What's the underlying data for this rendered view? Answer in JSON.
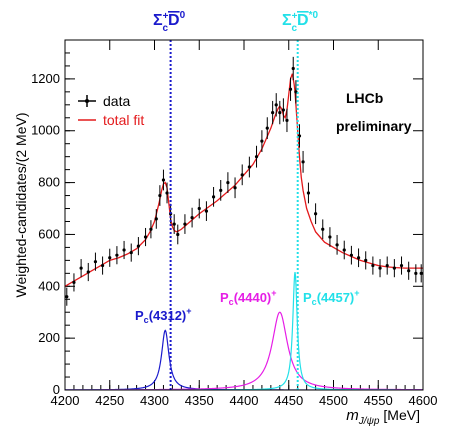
{
  "chart_data": {
    "type": "scatter",
    "xlabel": "m_{J/ψp} [MeV]",
    "xlabel_main": "m",
    "xlabel_sub": "J/ψp",
    "xlabel_unit": "[MeV]",
    "ylabel": "Weighted-candidates/(2 MeV)",
    "xlim": [
      4200,
      4600
    ],
    "ylim": [
      0,
      1350
    ],
    "x_ticks": [
      "4200",
      "4250",
      "4300",
      "4350",
      "4400",
      "4450",
      "4500",
      "4550",
      "4600"
    ],
    "y_ticks": [
      "0",
      "200",
      "400",
      "600",
      "800",
      "1000",
      "1200"
    ],
    "legend": {
      "placement": "top-left",
      "data_label": "data",
      "fit_label": "total fit"
    },
    "experiment_label": "LHCb",
    "status_label": "preliminary",
    "colors": {
      "data": "#000000",
      "fit": "#e41a1c",
      "pc4312": "#1a1acc",
      "pc4440": "#e61ee6",
      "pc4457": "#22e0e8",
      "thr1": "#1a1acc",
      "thr2": "#22e0e8"
    },
    "thresholds": [
      {
        "name": "Σc+ D̄0",
        "base": "Σ",
        "sub": "c",
        "sup": "+",
        "meson": "D",
        "meson_sup": "0",
        "x": 4318
      },
      {
        "name": "Σc+ D̄*0",
        "base": "Σ",
        "sub": "c",
        "sup": "+",
        "meson": "D",
        "meson_sup": "*0",
        "x": 4460
      }
    ],
    "resonances": [
      {
        "name": "Pc(4312)+",
        "base": "P",
        "sub": "c",
        "mass": "(4312)",
        "sup": "+",
        "peak_x": 4312,
        "amplitude": 230,
        "width": 10
      },
      {
        "name": "Pc(4440)+",
        "base": "P",
        "sub": "c",
        "mass": "(4440)",
        "sup": "+",
        "peak_x": 4440,
        "amplitude": 300,
        "width": 21
      },
      {
        "name": "Pc(4457)+",
        "base": "P",
        "sub": "c",
        "mass": "(4457)",
        "sup": "+",
        "peak_x": 4457,
        "amplitude": 455,
        "width": 6
      }
    ],
    "fit_curve": {
      "x": [
        4200,
        4210,
        4220,
        4230,
        4240,
        4250,
        4260,
        4270,
        4280,
        4290,
        4295,
        4300,
        4305,
        4308,
        4310,
        4312,
        4314,
        4316,
        4318,
        4320,
        4322,
        4325,
        4330,
        4340,
        4350,
        4360,
        4370,
        4380,
        4390,
        4400,
        4410,
        4420,
        4425,
        4430,
        4435,
        4438,
        4440,
        4442,
        4444,
        4446,
        4448,
        4450,
        4452,
        4454,
        4456,
        4457,
        4458,
        4460,
        4462,
        4464,
        4466,
        4470,
        4475,
        4480,
        4490,
        4500,
        4510,
        4520,
        4530,
        4540,
        4550,
        4560,
        4570,
        4580,
        4590,
        4600
      ],
      "y": [
        400,
        420,
        440,
        460,
        480,
        500,
        510,
        525,
        545,
        580,
        610,
        650,
        720,
        770,
        795,
        800,
        780,
        720,
        660,
        630,
        615,
        610,
        620,
        650,
        680,
        705,
        730,
        760,
        790,
        830,
        870,
        930,
        970,
        1010,
        1060,
        1085,
        1095,
        1085,
        1060,
        1050,
        1080,
        1140,
        1200,
        1220,
        1180,
        1150,
        1100,
        1000,
        900,
        820,
        770,
        700,
        650,
        610,
        570,
        550,
        530,
        515,
        500,
        490,
        480,
        475,
        472,
        470,
        470,
        470
      ]
    },
    "data_points": {
      "x": [
        4202,
        4210,
        4218,
        4226,
        4234,
        4242,
        4250,
        4258,
        4266,
        4274,
        4282,
        4290,
        4296,
        4302,
        4306,
        4310,
        4314,
        4318,
        4322,
        4326,
        4334,
        4342,
        4350,
        4358,
        4366,
        4374,
        4382,
        4390,
        4398,
        4406,
        4414,
        4420,
        4426,
        4432,
        4436,
        4440,
        4444,
        4448,
        4452,
        4455,
        4458,
        4462,
        4466,
        4472,
        4480,
        4488,
        4496,
        4504,
        4512,
        4520,
        4528,
        4536,
        4544,
        4552,
        4560,
        4568,
        4576,
        4584,
        4592,
        4598
      ],
      "y": [
        360,
        415,
        470,
        455,
        495,
        480,
        510,
        520,
        540,
        530,
        555,
        590,
        620,
        660,
        750,
        810,
        760,
        680,
        640,
        600,
        640,
        665,
        700,
        690,
        745,
        770,
        800,
        780,
        830,
        860,
        900,
        960,
        1010,
        1070,
        1100,
        1070,
        1080,
        1040,
        1160,
        1240,
        1150,
        980,
        880,
        760,
        680,
        620,
        590,
        560,
        540,
        520,
        510,
        500,
        480,
        470,
        480,
        470,
        480,
        460,
        450,
        450
      ],
      "err": [
        35,
        35,
        35,
        35,
        35,
        35,
        35,
        35,
        35,
        35,
        35,
        35,
        35,
        38,
        40,
        40,
        40,
        38,
        38,
        38,
        38,
        38,
        38,
        38,
        38,
        40,
        40,
        40,
        40,
        40,
        42,
        42,
        42,
        45,
        45,
        45,
        45,
        45,
        45,
        45,
        45,
        45,
        42,
        40,
        40,
        38,
        38,
        38,
        36,
        36,
        36,
        35,
        35,
        35,
        35,
        35,
        35,
        35,
        35,
        35
      ]
    }
  }
}
